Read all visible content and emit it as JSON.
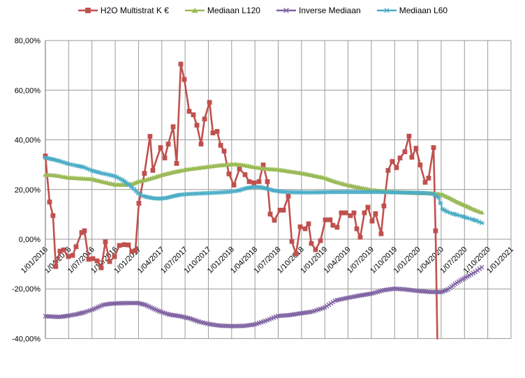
{
  "chart_data": {
    "type": "line",
    "title": "",
    "grid": true,
    "legend_position": "top",
    "x_axis": {
      "tick_labels": [
        "1/01/2016",
        "1/04/2016",
        "1/07/2016",
        "1/10/2016",
        "1/01/2017",
        "1/04/2017",
        "1/07/2017",
        "1/10/2017",
        "1/01/2018",
        "1/04/2018",
        "1/07/2018",
        "1/10/2018",
        "1/01/2019",
        "1/04/2019",
        "1/07/2019",
        "1/10/2019",
        "1/01/2020",
        "1/04/2020",
        "1/07/2020",
        "1/10/2020",
        "1/01/2021"
      ],
      "range_years": [
        2016.0,
        2021.0
      ]
    },
    "y_axis": {
      "tick_labels": [
        "80,00%",
        "60,00%",
        "40,00%",
        "20,00%",
        "0,00%",
        "-20,00%",
        "-40,00%"
      ],
      "tick_values": [
        80,
        60,
        40,
        20,
        0,
        -20,
        -40
      ],
      "range": [
        -40,
        80
      ],
      "unit": "percent"
    },
    "colors": {
      "h2o": "#C0504D",
      "mediaan_l120": "#9BBB59",
      "inverse_mediaan": "#8064A2",
      "mediaan_l60": "#4BACC6",
      "gridline": "#999999",
      "axis": "#808080"
    },
    "series": [
      {
        "name": "H2O Multistrat K €",
        "color": "#C0504D",
        "marker": "square",
        "marker_density": "points",
        "width": 2.6,
        "clip": true,
        "points": [
          [
            2016.0,
            33.5
          ],
          [
            2016.045,
            15.0
          ],
          [
            2016.082,
            9.5
          ],
          [
            2016.112,
            -11.0
          ],
          [
            2016.157,
            -4.8
          ],
          [
            2016.195,
            -4.3
          ],
          [
            2016.247,
            -7.0
          ],
          [
            2016.292,
            -6.5
          ],
          [
            2016.33,
            -3.0
          ],
          [
            2016.39,
            2.7
          ],
          [
            2016.42,
            3.4
          ],
          [
            2016.465,
            -8.1
          ],
          [
            2016.51,
            -7.8
          ],
          [
            2016.555,
            -8.7
          ],
          [
            2016.6,
            -11.5
          ],
          [
            2016.645,
            -1.1
          ],
          [
            2016.69,
            -9.0
          ],
          [
            2016.742,
            -7.0
          ],
          [
            2016.795,
            -2.5
          ],
          [
            2016.847,
            -2.2
          ],
          [
            2016.892,
            -2.3
          ],
          [
            2016.929,
            -5.0
          ],
          [
            2016.967,
            -4.5
          ],
          [
            2017.004,
            14.5
          ],
          [
            2017.064,
            26.5
          ],
          [
            2017.124,
            41.4
          ],
          [
            2017.154,
            27.7
          ],
          [
            2017.237,
            36.9
          ],
          [
            2017.282,
            32.7
          ],
          [
            2017.319,
            38.3
          ],
          [
            2017.372,
            45.3
          ],
          [
            2017.409,
            30.5
          ],
          [
            2017.454,
            70.5
          ],
          [
            2017.492,
            64.3
          ],
          [
            2017.544,
            51.5
          ],
          [
            2017.589,
            50.1
          ],
          [
            2017.627,
            45.9
          ],
          [
            2017.672,
            38.3
          ],
          [
            2017.709,
            48.4
          ],
          [
            2017.762,
            55.1
          ],
          [
            2017.799,
            42.8
          ],
          [
            2017.844,
            43.4
          ],
          [
            2017.882,
            37.8
          ],
          [
            2017.919,
            35.5
          ],
          [
            2017.971,
            26.3
          ],
          [
            2018.024,
            21.8
          ],
          [
            2018.084,
            28.3
          ],
          [
            2018.144,
            26.0
          ],
          [
            2018.189,
            23.2
          ],
          [
            2018.241,
            22.7
          ],
          [
            2018.294,
            23.2
          ],
          [
            2018.339,
            29.9
          ],
          [
            2018.384,
            23.2
          ],
          [
            2018.414,
            10.1
          ],
          [
            2018.459,
            7.6
          ],
          [
            2018.519,
            11.7
          ],
          [
            2018.556,
            11.7
          ],
          [
            2018.609,
            17.3
          ],
          [
            2018.646,
            -0.9
          ],
          [
            2018.691,
            -5.9
          ],
          [
            2018.736,
            5.0
          ],
          [
            2018.789,
            4.2
          ],
          [
            2018.826,
            6.2
          ],
          [
            2018.856,
            -1.7
          ],
          [
            2018.901,
            -4.2
          ],
          [
            2018.954,
            -0.6
          ],
          [
            2019.006,
            7.8
          ],
          [
            2019.058,
            7.8
          ],
          [
            2019.088,
            5.6
          ],
          [
            2019.133,
            4.8
          ],
          [
            2019.178,
            10.6
          ],
          [
            2019.223,
            10.6
          ],
          [
            2019.276,
            9.5
          ],
          [
            2019.313,
            10.6
          ],
          [
            2019.343,
            4.2
          ],
          [
            2019.381,
            0.8
          ],
          [
            2019.426,
            10.6
          ],
          [
            2019.463,
            12.9
          ],
          [
            2019.508,
            7.3
          ],
          [
            2019.545,
            10.3
          ],
          [
            2019.605,
            2.2
          ],
          [
            2019.635,
            13.4
          ],
          [
            2019.68,
            27.7
          ],
          [
            2019.725,
            31.3
          ],
          [
            2019.77,
            28.8
          ],
          [
            2019.808,
            32.7
          ],
          [
            2019.86,
            35.2
          ],
          [
            2019.905,
            41.5
          ],
          [
            2019.935,
            33.0
          ],
          [
            2019.98,
            36.6
          ],
          [
            2020.025,
            29.9
          ],
          [
            2020.078,
            22.9
          ],
          [
            2020.115,
            24.6
          ],
          [
            2020.168,
            36.9
          ],
          [
            2020.19,
            3.4
          ],
          [
            2020.215,
            -55.0
          ]
        ]
      },
      {
        "name": "Mediaan L120",
        "color": "#9BBB59",
        "marker": "triangle",
        "marker_density": "dense",
        "width": 2.2,
        "clip": false,
        "points": [
          [
            2016.0,
            26.0
          ],
          [
            2016.112,
            25.7
          ],
          [
            2016.247,
            24.8
          ],
          [
            2016.375,
            24.5
          ],
          [
            2016.502,
            24.2
          ],
          [
            2016.6,
            23.3
          ],
          [
            2016.69,
            22.5
          ],
          [
            2016.75,
            22.0
          ],
          [
            2016.847,
            21.9
          ],
          [
            2016.937,
            22.3
          ],
          [
            2016.997,
            23.2
          ],
          [
            2017.087,
            24.0
          ],
          [
            2017.177,
            25.0
          ],
          [
            2017.252,
            25.9
          ],
          [
            2017.349,
            26.8
          ],
          [
            2017.447,
            27.6
          ],
          [
            2017.537,
            28.2
          ],
          [
            2017.649,
            28.7
          ],
          [
            2017.747,
            29.2
          ],
          [
            2017.852,
            29.7
          ],
          [
            2017.949,
            30.0
          ],
          [
            2018.047,
            30.2
          ],
          [
            2018.136,
            29.8
          ],
          [
            2018.249,
            29.0
          ],
          [
            2018.361,
            28.4
          ],
          [
            2018.504,
            28.0
          ],
          [
            2018.624,
            27.3
          ],
          [
            2018.751,
            26.6
          ],
          [
            2018.871,
            25.7
          ],
          [
            2018.999,
            24.7
          ],
          [
            2019.111,
            23.2
          ],
          [
            2019.246,
            21.8
          ],
          [
            2019.373,
            20.8
          ],
          [
            2019.501,
            19.9
          ],
          [
            2019.621,
            19.3
          ],
          [
            2019.748,
            19.0
          ],
          [
            2019.86,
            18.8
          ],
          [
            2019.995,
            18.6
          ],
          [
            2020.123,
            18.5
          ],
          [
            2020.25,
            18.2
          ],
          [
            2020.348,
            16.5
          ],
          [
            2020.423,
            15.0
          ],
          [
            2020.498,
            13.8
          ],
          [
            2020.573,
            12.5
          ],
          [
            2020.633,
            11.5
          ],
          [
            2020.685,
            10.8
          ]
        ]
      },
      {
        "name": "Inverse Mediaan",
        "color": "#8064A2",
        "marker": "x",
        "marker_density": "dense",
        "width": 2.2,
        "clip": false,
        "points": [
          [
            2016.0,
            -31.0
          ],
          [
            2016.15,
            -31.3
          ],
          [
            2016.247,
            -30.8
          ],
          [
            2016.337,
            -30.2
          ],
          [
            2016.412,
            -29.5
          ],
          [
            2016.502,
            -28.4
          ],
          [
            2016.562,
            -27.4
          ],
          [
            2016.622,
            -26.4
          ],
          [
            2016.69,
            -26.0
          ],
          [
            2016.787,
            -25.8
          ],
          [
            2016.9,
            -25.7
          ],
          [
            2016.997,
            -25.7
          ],
          [
            2017.072,
            -26.4
          ],
          [
            2017.147,
            -27.7
          ],
          [
            2017.222,
            -29.0
          ],
          [
            2017.327,
            -30.3
          ],
          [
            2017.447,
            -31.0
          ],
          [
            2017.552,
            -31.9
          ],
          [
            2017.649,
            -33.2
          ],
          [
            2017.762,
            -34.2
          ],
          [
            2017.874,
            -34.8
          ],
          [
            2018.002,
            -35.0
          ],
          [
            2018.136,
            -34.9
          ],
          [
            2018.249,
            -34.3
          ],
          [
            2018.361,
            -32.9
          ],
          [
            2018.496,
            -30.9
          ],
          [
            2018.609,
            -30.6
          ],
          [
            2018.751,
            -29.8
          ],
          [
            2018.864,
            -29.2
          ],
          [
            2018.999,
            -27.5
          ],
          [
            2019.111,
            -24.7
          ],
          [
            2019.246,
            -23.6
          ],
          [
            2019.358,
            -22.8
          ],
          [
            2019.501,
            -21.9
          ],
          [
            2019.635,
            -20.5
          ],
          [
            2019.748,
            -19.9
          ],
          [
            2019.86,
            -20.2
          ],
          [
            2019.995,
            -20.8
          ],
          [
            2020.123,
            -21.2
          ],
          [
            2020.25,
            -21.3
          ],
          [
            2020.325,
            -20.2
          ],
          [
            2020.4,
            -18.0
          ],
          [
            2020.475,
            -16.2
          ],
          [
            2020.55,
            -14.6
          ],
          [
            2020.617,
            -13.2
          ],
          [
            2020.685,
            -11.3
          ]
        ]
      },
      {
        "name": "Mediaan L60",
        "color": "#4BACC6",
        "marker": "asterisk",
        "marker_density": "dense",
        "width": 2.0,
        "clip": false,
        "points": [
          [
            2016.0,
            32.8
          ],
          [
            2016.075,
            32.2
          ],
          [
            2016.15,
            31.5
          ],
          [
            2016.247,
            30.3
          ],
          [
            2016.337,
            29.6
          ],
          [
            2016.412,
            29.0
          ],
          [
            2016.502,
            27.6
          ],
          [
            2016.6,
            26.6
          ],
          [
            2016.69,
            25.9
          ],
          [
            2016.75,
            25.3
          ],
          [
            2016.825,
            23.9
          ],
          [
            2016.9,
            21.8
          ],
          [
            2016.952,
            20.2
          ],
          [
            2016.997,
            18.5
          ],
          [
            2017.049,
            17.4
          ],
          [
            2017.102,
            16.9
          ],
          [
            2017.162,
            16.5
          ],
          [
            2017.222,
            16.3
          ],
          [
            2017.297,
            16.6
          ],
          [
            2017.372,
            17.3
          ],
          [
            2017.447,
            17.9
          ],
          [
            2017.537,
            18.2
          ],
          [
            2017.649,
            18.4
          ],
          [
            2017.762,
            18.6
          ],
          [
            2017.874,
            18.8
          ],
          [
            2017.987,
            19.1
          ],
          [
            2018.077,
            19.6
          ],
          [
            2018.151,
            20.5
          ],
          [
            2018.226,
            21.0
          ],
          [
            2018.301,
            21.0
          ],
          [
            2018.376,
            20.4
          ],
          [
            2018.451,
            19.6
          ],
          [
            2018.549,
            19.1
          ],
          [
            2018.661,
            18.9
          ],
          [
            2018.811,
            18.8
          ],
          [
            2018.961,
            18.9
          ],
          [
            2019.111,
            19.0
          ],
          [
            2019.261,
            19.0
          ],
          [
            2019.411,
            19.0
          ],
          [
            2019.561,
            19.0
          ],
          [
            2019.695,
            18.9
          ],
          [
            2019.823,
            18.8
          ],
          [
            2019.95,
            18.7
          ],
          [
            2020.07,
            18.6
          ],
          [
            2020.16,
            18.3
          ],
          [
            2020.22,
            16.8
          ],
          [
            2020.265,
            12.1
          ],
          [
            2020.318,
            11.0
          ],
          [
            2020.37,
            10.3
          ],
          [
            2020.423,
            9.8
          ],
          [
            2020.475,
            9.2
          ],
          [
            2020.528,
            8.6
          ],
          [
            2020.58,
            8.0
          ],
          [
            2020.633,
            7.4
          ],
          [
            2020.685,
            6.5
          ]
        ]
      }
    ]
  }
}
